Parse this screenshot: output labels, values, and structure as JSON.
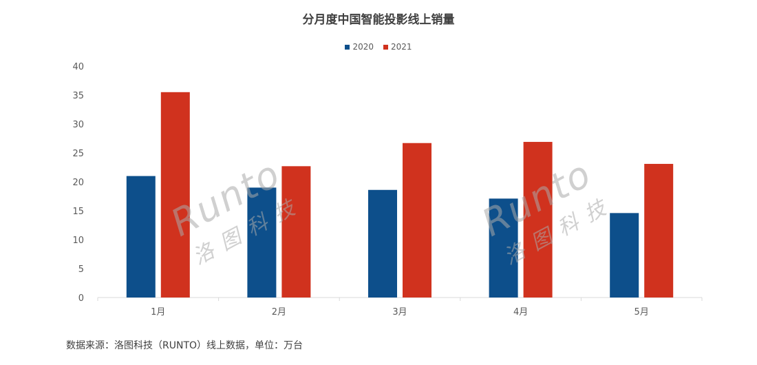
{
  "chart_data": {
    "type": "bar",
    "title": "分月度中国智能投影线上销量",
    "categories": [
      "1月",
      "2月",
      "3月",
      "4月",
      "5月"
    ],
    "series": [
      {
        "name": "2020",
        "color": "#0d4f8b",
        "values": [
          21.0,
          19.0,
          18.6,
          17.1,
          14.6
        ]
      },
      {
        "name": "2021",
        "color": "#d0321e",
        "values": [
          35.5,
          22.7,
          26.7,
          26.9,
          23.1
        ]
      }
    ],
    "ylim": [
      0,
      40
    ],
    "yticks": [
      0,
      5,
      10,
      15,
      20,
      25,
      30,
      35,
      40
    ],
    "xlabel": "",
    "ylabel": "",
    "grid": false,
    "legend_position": "top"
  },
  "source": "数据来源：洛图科技（RUNTO）线上数据，单位：万台",
  "watermark": {
    "en": "Runto",
    "cn": "洛图科技"
  }
}
